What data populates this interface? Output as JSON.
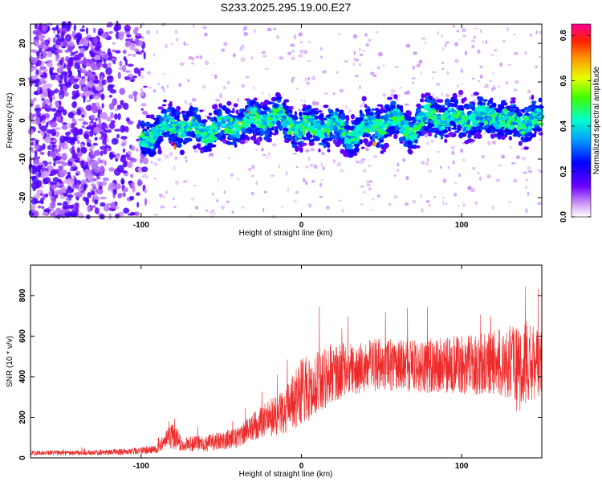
{
  "title": "S233.2025.295.19.00.E27",
  "colors": {
    "snr_line": "#ee2a2a",
    "axis": "#000000",
    "background": "#ffffff"
  },
  "chart_data": [
    {
      "type": "heatmap",
      "title": "",
      "xlabel": "Height of straight line (km)",
      "ylabel": "Frequency (Hz)",
      "xlim": [
        -169,
        150
      ],
      "ylim": [
        -25,
        25
      ],
      "x_ticks": [
        -100,
        0,
        100
      ],
      "x_tick_labels": [
        "-100",
        "0",
        "100"
      ],
      "y_ticks": [
        20,
        10,
        0,
        -10,
        -20
      ],
      "y_tick_labels": [
        "20",
        "10",
        "0",
        "-10",
        "-20"
      ],
      "colorbar": {
        "label": "Normalized spectral amplitude",
        "range": [
          0.0,
          0.85
        ],
        "ticks": [
          0.0,
          0.2,
          0.4,
          0.6,
          0.8
        ],
        "tick_labels": [
          "0.0",
          "0.2",
          "0.4",
          "0.6",
          "0.8"
        ],
        "colormap": "rainbow"
      },
      "noise_region_x": [
        -169,
        -97
      ],
      "ridge": {
        "x": [
          -100,
          -90,
          -80,
          -70,
          -60,
          -50,
          -40,
          -30,
          -20,
          -10,
          0,
          10,
          20,
          30,
          40,
          50,
          60,
          70,
          80,
          90,
          100,
          110,
          120,
          130,
          140,
          150
        ],
        "freq": [
          -5,
          -3,
          -1,
          -2,
          -3,
          -2,
          -1,
          0,
          1,
          0,
          -2,
          -2,
          -1,
          -4,
          -2,
          -1,
          0,
          -3,
          2,
          0,
          1,
          0,
          2,
          -1,
          0,
          0
        ]
      }
    },
    {
      "type": "line",
      "title": "",
      "xlabel": "Height of straight line (km)",
      "ylabel": "SNR (10 * v/v)",
      "xlim": [
        -169,
        150
      ],
      "ylim": [
        0,
        950
      ],
      "x_ticks": [
        -100,
        0,
        100
      ],
      "x_tick_labels": [
        "-100",
        "0",
        "100"
      ],
      "y_ticks": [
        0,
        200,
        400,
        600,
        800
      ],
      "y_tick_labels": [
        "0",
        "200",
        "400",
        "600",
        "800"
      ],
      "series": [
        {
          "name": "SNR",
          "envelope_x": [
            -169,
            -140,
            -110,
            -100,
            -90,
            -85,
            -80,
            -75,
            -60,
            -40,
            -25,
            -10,
            0,
            10,
            20,
            30,
            50,
            70,
            90,
            110,
            125,
            130,
            135,
            140,
            150
          ],
          "envelope_mean": [
            25,
            25,
            30,
            35,
            45,
            90,
            110,
            70,
            70,
            100,
            180,
            230,
            320,
            380,
            420,
            440,
            460,
            450,
            460,
            460,
            470,
            480,
            420,
            470,
            450
          ],
          "envelope_spread": [
            12,
            12,
            15,
            18,
            25,
            40,
            70,
            35,
            40,
            50,
            80,
            110,
            170,
            160,
            150,
            130,
            130,
            130,
            140,
            150,
            170,
            190,
            220,
            210,
            170
          ],
          "peak_max": 930
        }
      ]
    }
  ]
}
